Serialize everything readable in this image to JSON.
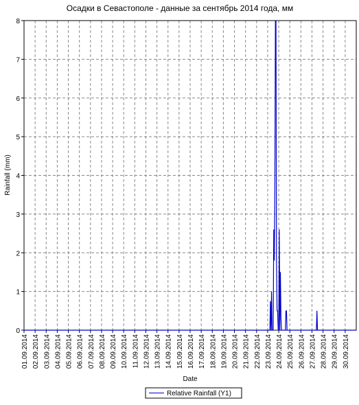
{
  "chart_data": {
    "type": "line",
    "title": "Осадки в Севастополе - данные за сентябрь 2014 года, мм",
    "x_label": "Date",
    "y_label": "Rainfall (mm)",
    "x": [
      1,
      23.2,
      23.25,
      23.3,
      23.35,
      23.4,
      23.5,
      23.55,
      23.6,
      23.65,
      23.7,
      23.75,
      23.8,
      23.85,
      23.9,
      23.95,
      24.0,
      24.05,
      24.1,
      24.15,
      24.2,
      24.25,
      24.3,
      24.6,
      24.65,
      24.7,
      24.75,
      27.4,
      27.45,
      27.5,
      31
    ],
    "series": [
      {
        "name": "Relative Rainfall (Y1)",
        "color": "#0000cc",
        "values": [
          0,
          0,
          0.75,
          0,
          1.0,
          0,
          0,
          2.6,
          1.8,
          3.6,
          8,
          8,
          1.8,
          0.5,
          0.5,
          0,
          0,
          2.6,
          0,
          1.5,
          0.3,
          0,
          0,
          0,
          0.5,
          0.5,
          0,
          0,
          0.5,
          0,
          0
        ]
      }
    ],
    "xlim": [
      1,
      31
    ],
    "xticks": [
      {
        "value": 1,
        "label": "01.09.2014"
      },
      {
        "value": 2,
        "label": "02.09.2014"
      },
      {
        "value": 3,
        "label": "03.09.2014"
      },
      {
        "value": 4,
        "label": "04.09.2014"
      },
      {
        "value": 5,
        "label": "05.09.2014"
      },
      {
        "value": 6,
        "label": "06.09.2014"
      },
      {
        "value": 7,
        "label": "07.09.2014"
      },
      {
        "value": 8,
        "label": "08.09.2014"
      },
      {
        "value": 9,
        "label": "09.09.2014"
      },
      {
        "value": 10,
        "label": "10.09.2014"
      },
      {
        "value": 11,
        "label": "11.09.2014"
      },
      {
        "value": 12,
        "label": "12.09.2014"
      },
      {
        "value": 13,
        "label": "13.09.2014"
      },
      {
        "value": 14,
        "label": "14.09.2014"
      },
      {
        "value": 15,
        "label": "15.09.2014"
      },
      {
        "value": 16,
        "label": "16.09.2014"
      },
      {
        "value": 17,
        "label": "17.09.2014"
      },
      {
        "value": 18,
        "label": "18.09.2014"
      },
      {
        "value": 19,
        "label": "19.09.2014"
      },
      {
        "value": 20,
        "label": "20.09.2014"
      },
      {
        "value": 21,
        "label": "21.09.2014"
      },
      {
        "value": 22,
        "label": "22.09.2014"
      },
      {
        "value": 23,
        "label": "23.09.2014"
      },
      {
        "value": 24,
        "label": "24.09.2014"
      },
      {
        "value": 25,
        "label": "25.09.2014"
      },
      {
        "value": 26,
        "label": "26.09.2014"
      },
      {
        "value": 27,
        "label": "27.09.2014"
      },
      {
        "value": 28,
        "label": "28.09.2014"
      },
      {
        "value": 29,
        "label": "29.09.2014"
      },
      {
        "value": 30,
        "label": "30.09.2014"
      }
    ],
    "ylim": [
      0,
      8
    ],
    "yticks": [
      0,
      1,
      2,
      3,
      4,
      5,
      6,
      7,
      8
    ],
    "grid": true,
    "legend": "bottom"
  }
}
